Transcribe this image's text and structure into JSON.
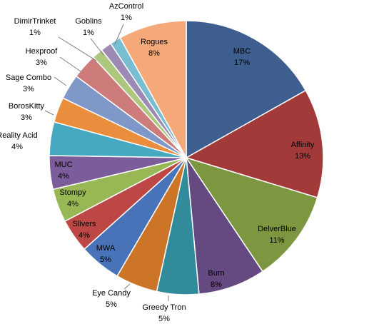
{
  "chart_data": {
    "type": "pie",
    "title": "",
    "slices": [
      {
        "label": "MBC",
        "pct_text": "17%",
        "value": 17,
        "color": "#3e5e8f"
      },
      {
        "label": "Affinity",
        "pct_text": "13%",
        "value": 13,
        "color": "#a33a3a"
      },
      {
        "label": "DelverBlue",
        "pct_text": "11%",
        "value": 11,
        "color": "#7d9741"
      },
      {
        "label": "Burn",
        "pct_text": "8%",
        "value": 8,
        "color": "#644a80"
      },
      {
        "label": "Greedy Tron",
        "pct_text": "5%",
        "value": 5,
        "color": "#318b9b"
      },
      {
        "label": "Eye Candy",
        "pct_text": "5%",
        "value": 5,
        "color": "#cc7529"
      },
      {
        "label": "MWA",
        "pct_text": "5%",
        "value": 5,
        "color": "#4873b8"
      },
      {
        "label": "Slivers",
        "pct_text": "4%",
        "value": 4,
        "color": "#bd4744"
      },
      {
        "label": "Stompy",
        "pct_text": "4%",
        "value": 4,
        "color": "#98b856"
      },
      {
        "label": "MUC",
        "pct_text": "4%",
        "value": 4,
        "color": "#7b5d9c"
      },
      {
        "label": "Reality Acid",
        "pct_text": "4%",
        "value": 4,
        "color": "#47a9bf"
      },
      {
        "label": "BorosKitty",
        "pct_text": "3%",
        "value": 3,
        "color": "#ea8d3c"
      },
      {
        "label": "Sage Combo",
        "pct_text": "3%",
        "value": 3,
        "color": "#7f98c8"
      },
      {
        "label": "Hexproof",
        "pct_text": "3%",
        "value": 3,
        "color": "#cd7c7b"
      },
      {
        "label": "Goblins",
        "pct_text": "1%",
        "value": 1.3,
        "color": "#adc77e"
      },
      {
        "label": "DimirTrinket",
        "pct_text": "1%",
        "value": 1.3,
        "color": "#9c8ab5"
      },
      {
        "label": "AzControl",
        "pct_text": "1%",
        "value": 1.3,
        "color": "#78bdd0"
      },
      {
        "label": "Rogues",
        "pct_text": "8%",
        "value": 8.1,
        "color": "#f5a878"
      }
    ]
  }
}
